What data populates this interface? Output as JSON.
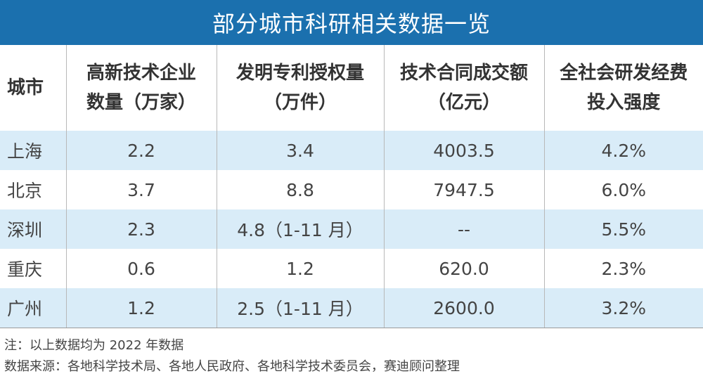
{
  "title": "部分城市科研相关数据一览",
  "colors": {
    "header_bar": "#1b70ae",
    "row_highlight": "#d9ecf8"
  },
  "headers": [
    {
      "line1": "城市",
      "line2": ""
    },
    {
      "line1": "高新技术企业",
      "line2": "数量（万家）"
    },
    {
      "line1": "发明专利授权量",
      "line2": "（万件）"
    },
    {
      "line1": "技术合同成交额",
      "line2": "（亿元）"
    },
    {
      "line1": "全社会研发经费",
      "line2": "投入强度"
    }
  ],
  "rows": [
    [
      "上海",
      "2.2",
      "3.4",
      "4003.5",
      "4.2%"
    ],
    [
      "北京",
      "3.7",
      "8.8",
      "7947.5",
      "6.0%"
    ],
    [
      "深圳",
      "2.3",
      "4.8（1-11 月）",
      "--",
      "5.5%"
    ],
    [
      "重庆",
      "0.6",
      "1.2",
      "620.0",
      "2.3%"
    ],
    [
      "广州",
      "1.2",
      "2.5（1-11 月）",
      "2600.0",
      "3.2%"
    ]
  ],
  "note": "注：以上数据均为 2022 年数据",
  "source": "数据来源：各地科学技术局、各地人民政府、各地科学技术委员会，赛迪顾问整理"
}
